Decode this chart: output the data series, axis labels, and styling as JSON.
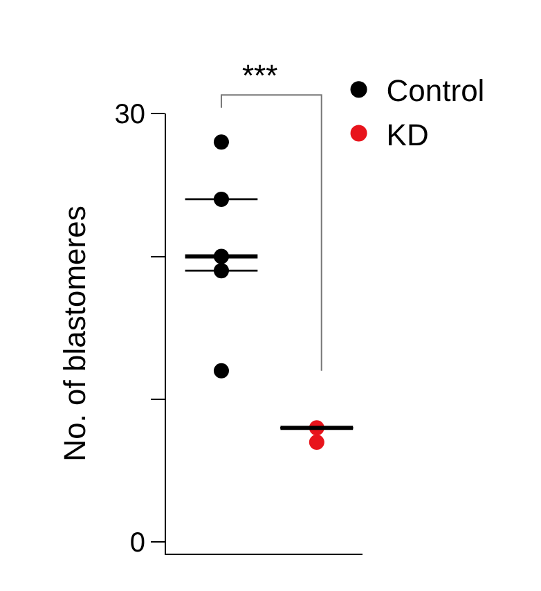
{
  "chart_data": {
    "type": "scatter",
    "ylabel": "No. of blastomeres",
    "categories": [
      null,
      null
    ],
    "series": [
      {
        "name": "Control",
        "color": "#000000",
        "values": [
          28,
          null
        ]
      },
      {
        "color": "#000000",
        "values": [
          24,
          null
        ]
      },
      {
        "color": "#000000",
        "values": [
          20,
          null
        ]
      },
      {
        "color": "#000000",
        "values": [
          19,
          null
        ]
      },
      {
        "color": "#000000",
        "values": [
          12,
          null
        ]
      },
      {
        "name": "KD",
        "color": "#e8141c",
        "values": [
          null,
          8
        ]
      },
      {
        "color": "#e8141c",
        "values": [
          null,
          7
        ]
      },
      {
        "type": "box",
        "color": "#000000",
        "boxes": [
          {
            "low": 19,
            "q1": 19,
            "median": 20,
            "q3": 24,
            "high": 24
          },
          {
            "low": 8,
            "q1": 8,
            "median": 8,
            "q3": 8,
            "high": 8
          }
        ]
      }
    ],
    "annotations": [
      "***"
    ],
    "ylim": [
      -0.8,
      30
    ],
    "yticks": [
      {
        "value": 0,
        "label": "0"
      },
      {
        "value": 10,
        "label": null
      },
      {
        "value": 20,
        "label": null
      },
      {
        "value": 30,
        "label": "30"
      }
    ],
    "grid": false,
    "legend": "top right",
    "marker": "circle",
    "tick_labels": "y"
  }
}
